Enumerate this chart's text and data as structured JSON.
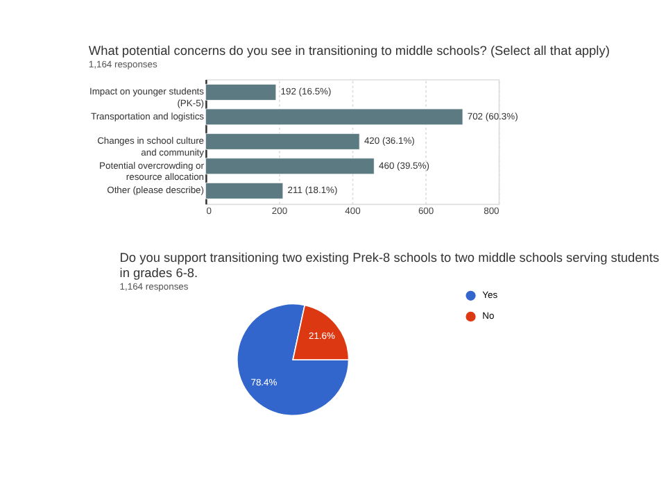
{
  "chart_data": [
    {
      "type": "bar",
      "orientation": "horizontal",
      "title": "What potential concerns do you see in transitioning to middle schools? (Select all that apply)",
      "subtitle": "1,164 responses",
      "categories": [
        "Impact on younger students (PK-5)",
        "Transportation and logistics",
        "Changes in school culture and community",
        "Potential overcrowding or resource allocation",
        "Other (please describe)"
      ],
      "values": [
        192,
        702,
        420,
        460,
        211
      ],
      "value_labels": [
        "192 (16.5%)",
        "702 (60.3%)",
        "420 (36.1%)",
        "460 (39.5%)",
        "211 (18.1%)"
      ],
      "color": "#5b7a82",
      "xlim": [
        0,
        800
      ],
      "xticks": [
        0,
        200,
        400,
        600,
        800
      ],
      "grid": "x"
    },
    {
      "type": "pie",
      "title": "Do you support transitioning two existing Prek-8 schools to two middle schools serving students in grades 6-8.",
      "subtitle": "1,164 responses",
      "categories": [
        "Yes",
        "No"
      ],
      "values": [
        78.4,
        21.6
      ],
      "colors": [
        "#3366cc",
        "#dc3912"
      ],
      "value_labels": [
        "78.4%",
        "21.6%"
      ],
      "legend": "top right"
    }
  ]
}
